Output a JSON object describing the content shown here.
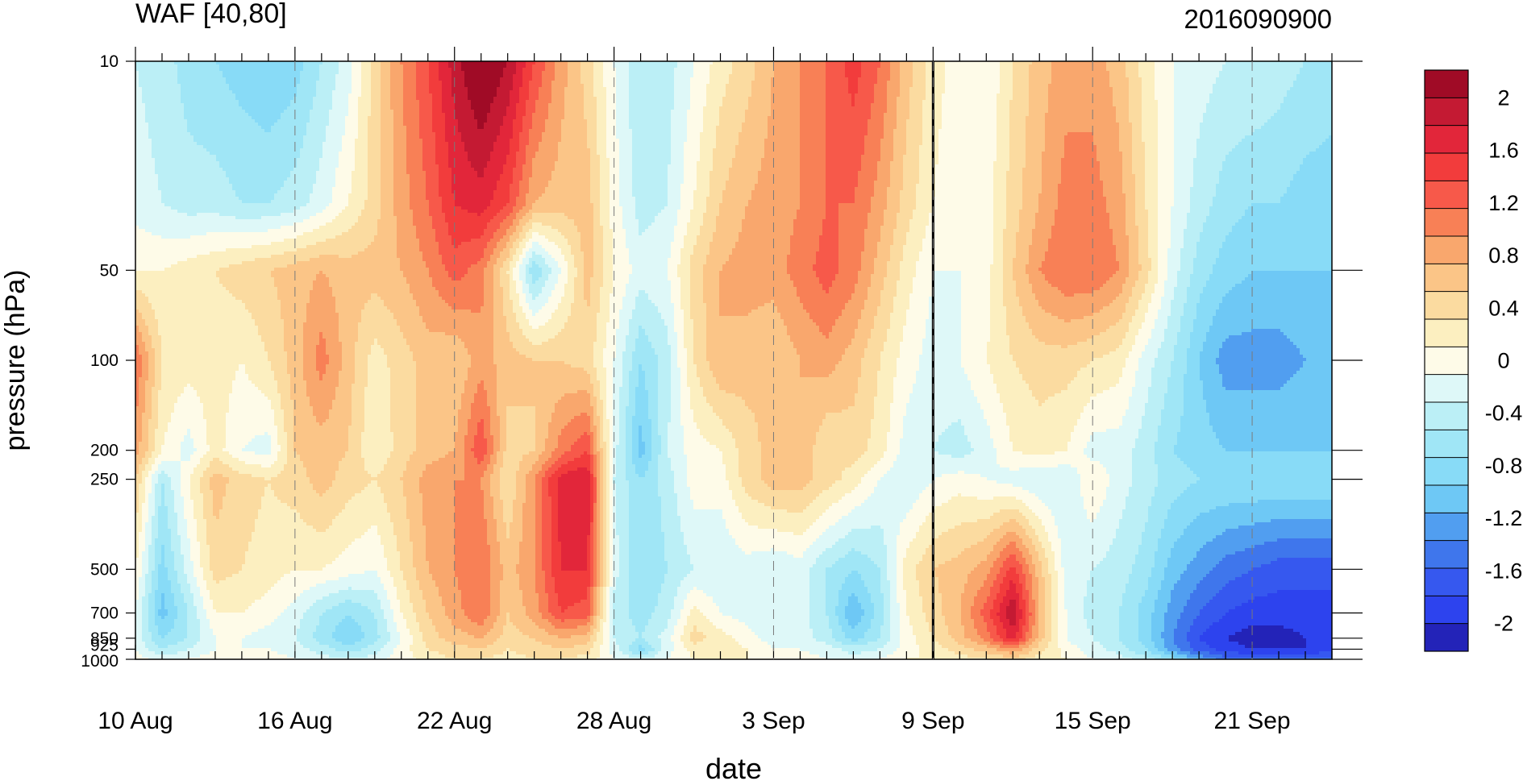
{
  "chart_data": {
    "type": "heatmap",
    "title": "WAF [40,80]",
    "title_right": "2016090900",
    "xlabel": "date",
    "ylabel": "pressure (hPa)",
    "x_tick_labels": [
      "10 Aug",
      "16 Aug",
      "22 Aug",
      "28 Aug",
      "3 Sep",
      "9 Sep",
      "15 Sep",
      "21 Sep"
    ],
    "x_range": [
      "2016-08-10",
      "2016-09-24"
    ],
    "y_scale": "log",
    "y_ticks": [
      10,
      50,
      100,
      200,
      250,
      500,
      700,
      850,
      925,
      1000
    ],
    "y_tick_labels": [
      "10",
      "50",
      "100",
      "200",
      "250",
      "500",
      "700",
      "850",
      "925",
      "1000"
    ],
    "y_range": [
      1000,
      10
    ],
    "vertical_marker": "2016-09-09",
    "grid": false,
    "colorbar": {
      "position": "right",
      "levels": [
        -2.2,
        -2,
        -1.8,
        -1.6,
        -1.4,
        -1.2,
        -1,
        -0.8,
        -0.6,
        -0.4,
        -0.2,
        0,
        0.2,
        0.4,
        0.6,
        0.8,
        1,
        1.2,
        1.4,
        1.6,
        1.8,
        2,
        2.2
      ],
      "labels": [
        "2",
        "1.6",
        "1.2",
        "0.8",
        "0.4",
        "0",
        "-0.4",
        "-0.8",
        "-1.2",
        "-1.6",
        "-2"
      ],
      "label_values": [
        2,
        1.6,
        1.2,
        0.8,
        0.4,
        0,
        -0.4,
        -0.8,
        -1.2,
        -1.6,
        -2
      ],
      "colors": [
        "#2323b8",
        "#2d43ee",
        "#3658ef",
        "#3f76ec",
        "#519ef0",
        "#6ec8f5",
        "#88dbf7",
        "#a0e6f6",
        "#bbeff6",
        "#def8f8",
        "#fefbe8",
        "#fcefc0",
        "#fbdba0",
        "#fbc587",
        "#f9a76d",
        "#f88056",
        "#f7594a",
        "#f23c3c",
        "#e2263a",
        "#c41a33",
        "#a00b26"
      ]
    },
    "columns": [
      "10 Aug",
      "11 Aug",
      "12 Aug",
      "13 Aug",
      "14 Aug",
      "15 Aug",
      "16 Aug",
      "17 Aug",
      "18 Aug",
      "19 Aug",
      "20 Aug",
      "21 Aug",
      "22 Aug",
      "23 Aug",
      "24 Aug",
      "25 Aug",
      "26 Aug",
      "27 Aug",
      "28 Aug",
      "29 Aug",
      "30 Aug",
      "31 Aug",
      "1 Sep",
      "2 Sep",
      "3 Sep",
      "4 Sep",
      "5 Sep",
      "6 Sep",
      "7 Sep",
      "8 Sep",
      "9 Sep",
      "10 Sep",
      "11 Sep",
      "12 Sep",
      "13 Sep",
      "14 Sep",
      "15 Sep",
      "16 Sep",
      "17 Sep",
      "18 Sep",
      "19 Sep",
      "20 Sep",
      "21 Sep",
      "22 Sep",
      "23 Sep",
      "24 Sep"
    ],
    "rows": [
      10,
      30,
      50,
      100,
      200,
      250,
      500,
      700,
      850,
      925,
      1000
    ],
    "values": [
      [
        -0.4,
        -0.5,
        -0.7,
        -0.8,
        -0.9,
        -1.0,
        -0.9,
        -0.6,
        -0.3,
        0.3,
        0.8,
        1.2,
        1.7,
        2.1,
        1.8,
        1.2,
        0.7,
        0.3,
        -0.2,
        -0.6,
        -0.5,
        -0.2,
        0.1,
        0.3,
        0.6,
        0.8,
        1.0,
        1.3,
        1.0,
        0.5,
        0.1,
        -0.1,
        -0.2,
        0.2,
        0.5,
        0.7,
        0.7,
        0.5,
        0.1,
        -0.2,
        -0.3,
        -0.4,
        -0.4,
        -0.5,
        -0.6,
        -0.7
      ],
      [
        -0.3,
        -0.4,
        -0.5,
        -0.5,
        -0.6,
        -0.6,
        -0.5,
        -0.3,
        0.0,
        0.3,
        0.7,
        1.0,
        1.4,
        1.5,
        1.2,
        0.6,
        0.5,
        0.5,
        -0.1,
        -0.5,
        -0.4,
        0.0,
        0.4,
        0.6,
        0.7,
        0.8,
        1.0,
        1.0,
        0.7,
        0.3,
        0.0,
        -0.2,
        -0.1,
        0.3,
        0.6,
        0.9,
        0.9,
        0.7,
        0.2,
        -0.2,
        -0.5,
        -0.7,
        -0.8,
        -0.8,
        -0.9,
        -0.9
      ],
      [
        0.0,
        0.0,
        0.1,
        0.2,
        0.3,
        0.4,
        0.5,
        0.6,
        0.5,
        0.5,
        0.6,
        0.8,
        1.1,
        0.9,
        0.2,
        -0.8,
        -0.2,
        0.5,
        0.0,
        -0.3,
        -0.2,
        0.3,
        0.6,
        0.7,
        0.7,
        0.9,
        1.1,
        0.9,
        0.5,
        0.1,
        -0.2,
        -0.2,
        -0.1,
        0.4,
        0.8,
        1.0,
        1.0,
        0.8,
        0.3,
        -0.3,
        -0.7,
        -0.9,
        -1.0,
        -1.0,
        -1.0,
        -1.0
      ],
      [
        1.0,
        0.2,
        0.1,
        0.1,
        0.0,
        0.2,
        0.5,
        0.9,
        0.5,
        0.1,
        0.3,
        0.5,
        0.4,
        0.7,
        0.5,
        0.4,
        0.4,
        0.3,
        -0.2,
        -0.8,
        -0.5,
        0.2,
        0.6,
        0.5,
        0.4,
        0.6,
        0.7,
        0.5,
        0.2,
        -0.1,
        -0.3,
        -0.2,
        0.0,
        0.2,
        0.3,
        0.3,
        0.2,
        0.1,
        -0.3,
        -0.6,
        -1.0,
        -1.3,
        -1.3,
        -1.3,
        -1.2,
        -1.2
      ],
      [
        0.7,
        0.0,
        -0.3,
        0.1,
        -0.2,
        -0.3,
        0.4,
        0.5,
        0.4,
        0.0,
        0.3,
        0.5,
        0.6,
        1.2,
        0.3,
        0.4,
        0.9,
        1.2,
        -0.3,
        -1.1,
        -0.4,
        -0.1,
        0.0,
        0.3,
        0.5,
        0.6,
        0.2,
        0.3,
        0.1,
        -0.3,
        -0.4,
        -0.5,
        -0.3,
        0.0,
        0.1,
        0.0,
        -0.3,
        -0.3,
        -0.5,
        -0.8,
        -0.9,
        -1.0,
        -1.0,
        -1.0,
        -1.0,
        -1.0
      ],
      [
        0.4,
        -0.6,
        0.0,
        0.5,
        0.3,
        0.2,
        0.3,
        0.5,
        0.3,
        0.2,
        0.4,
        0.7,
        0.8,
        0.8,
        0.2,
        0.8,
        1.5,
        1.6,
        -0.4,
        -0.8,
        -0.5,
        -0.1,
        -0.1,
        0.3,
        0.5,
        0.5,
        0.3,
        0.1,
        -0.2,
        -0.4,
        -0.2,
        -0.1,
        -0.2,
        -0.3,
        -0.4,
        -0.4,
        0.0,
        -0.3,
        -0.5,
        -0.7,
        -0.8,
        -0.8,
        -0.8,
        -0.8,
        -0.8,
        -0.8
      ],
      [
        0.0,
        -0.9,
        -0.3,
        0.3,
        0.2,
        0.1,
        0.0,
        0.0,
        -0.1,
        -0.2,
        0.2,
        0.6,
        0.8,
        1.0,
        0.5,
        0.8,
        1.4,
        1.4,
        -0.3,
        -0.8,
        -0.6,
        -0.4,
        -0.4,
        -0.3,
        -0.4,
        -0.3,
        -0.6,
        -0.8,
        -0.6,
        0.1,
        0.4,
        0.5,
        0.7,
        1.3,
        0.5,
        -0.3,
        -0.4,
        -0.5,
        -0.7,
        -1.1,
        -1.3,
        -1.5,
        -1.6,
        -1.7,
        -1.7,
        -1.7
      ],
      [
        -0.2,
        -1.1,
        -0.6,
        0.0,
        0.0,
        -0.1,
        -0.3,
        -0.6,
        -0.8,
        -0.6,
        0.0,
        0.4,
        0.7,
        1.0,
        0.4,
        0.7,
        1.2,
        1.1,
        -0.5,
        -0.7,
        -0.5,
        0.1,
        -0.2,
        -0.3,
        -0.4,
        -0.3,
        -0.6,
        -1.2,
        -0.7,
        0.0,
        0.3,
        0.6,
        1.1,
        1.8,
        0.6,
        -0.2,
        -0.5,
        -0.6,
        -0.9,
        -1.3,
        -1.6,
        -1.8,
        -1.9,
        -1.9,
        -1.9,
        -1.9
      ],
      [
        -0.3,
        -0.8,
        -0.6,
        -0.2,
        -0.2,
        -0.3,
        -0.4,
        -0.7,
        -1.0,
        -0.7,
        -0.2,
        0.3,
        0.5,
        0.6,
        0.3,
        0.4,
        0.6,
        0.5,
        -0.4,
        -0.6,
        -0.3,
        0.3,
        0.1,
        -0.1,
        -0.3,
        -0.3,
        -0.5,
        -0.9,
        -0.6,
        -0.1,
        0.2,
        0.5,
        0.9,
        1.5,
        0.5,
        -0.2,
        -0.4,
        -0.6,
        -0.9,
        -1.4,
        -1.8,
        -2.0,
        -2.1,
        -2.1,
        -2.0,
        -2.0
      ],
      [
        -0.2,
        -0.6,
        -0.4,
        -0.2,
        -0.2,
        -0.2,
        -0.3,
        -0.5,
        -0.7,
        -0.5,
        -0.1,
        0.2,
        0.3,
        0.4,
        0.2,
        0.3,
        0.4,
        0.3,
        -0.3,
        -0.9,
        -0.3,
        0.1,
        0.1,
        0.0,
        -0.2,
        -0.2,
        -0.3,
        -0.5,
        -0.4,
        -0.1,
        0.1,
        0.3,
        0.5,
        0.8,
        0.3,
        -0.1,
        -0.3,
        -0.5,
        -0.8,
        -1.3,
        -1.7,
        -1.9,
        -2.0,
        -2.0,
        -2.0,
        -1.9
      ],
      [
        -0.1,
        -0.3,
        -0.2,
        -0.1,
        -0.1,
        -0.1,
        -0.2,
        -0.3,
        -0.4,
        -0.3,
        -0.1,
        0.1,
        0.2,
        0.2,
        0.1,
        0.2,
        0.2,
        0.1,
        -0.2,
        -0.4,
        -0.2,
        0.0,
        0.0,
        0.0,
        -0.1,
        -0.1,
        -0.2,
        -0.3,
        -0.2,
        0.0,
        0.0,
        0.1,
        0.2,
        0.3,
        0.1,
        0.0,
        -0.2,
        -0.3,
        -0.5,
        -0.8,
        -1.2,
        -1.5,
        -1.6,
        -1.6,
        -1.6,
        -1.5
      ]
    ]
  }
}
